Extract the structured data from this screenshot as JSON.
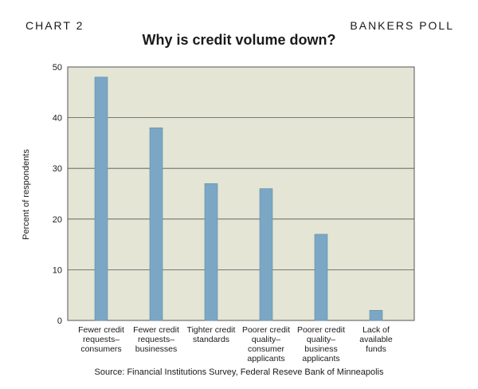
{
  "header": {
    "left": "CHART 2",
    "right": "BANKERS POLL"
  },
  "chart_data": {
    "type": "bar",
    "title": "Why is credit volume down?",
    "xlabel": "",
    "ylabel": "Percent of respondents",
    "ylim": [
      0,
      50
    ],
    "yticks": [
      0,
      10,
      20,
      30,
      40,
      50
    ],
    "grid": true,
    "categories": [
      "Fewer credit requests–consumers",
      "Fewer credit requests–businesses",
      "Tighter credit standards",
      "Poorer credit quality–consumer applicants",
      "Poorer credit quality–business applicants",
      "Lack of available funds"
    ],
    "category_display": [
      "Fewer credit\nrequests–\nconsumers",
      "Fewer credit\nrequests–\nbusinesses",
      "Tighter credit\nstandards",
      "Poorer credit\nquality–\nconsumer\napplicants",
      "Poorer credit\nquality–\nbusiness\napplicants",
      "Lack of\navailable\nfunds"
    ],
    "values": [
      48,
      38,
      27,
      26,
      17,
      2
    ],
    "colors": {
      "plot_bg": "#e4e5d4",
      "bar": "#7ba7c5",
      "bar_edge": "#5f8cab",
      "grid": "#555555"
    }
  },
  "source": "Source: Financial Institutions Survey, Federal Reseve Bank of Minneapolis"
}
